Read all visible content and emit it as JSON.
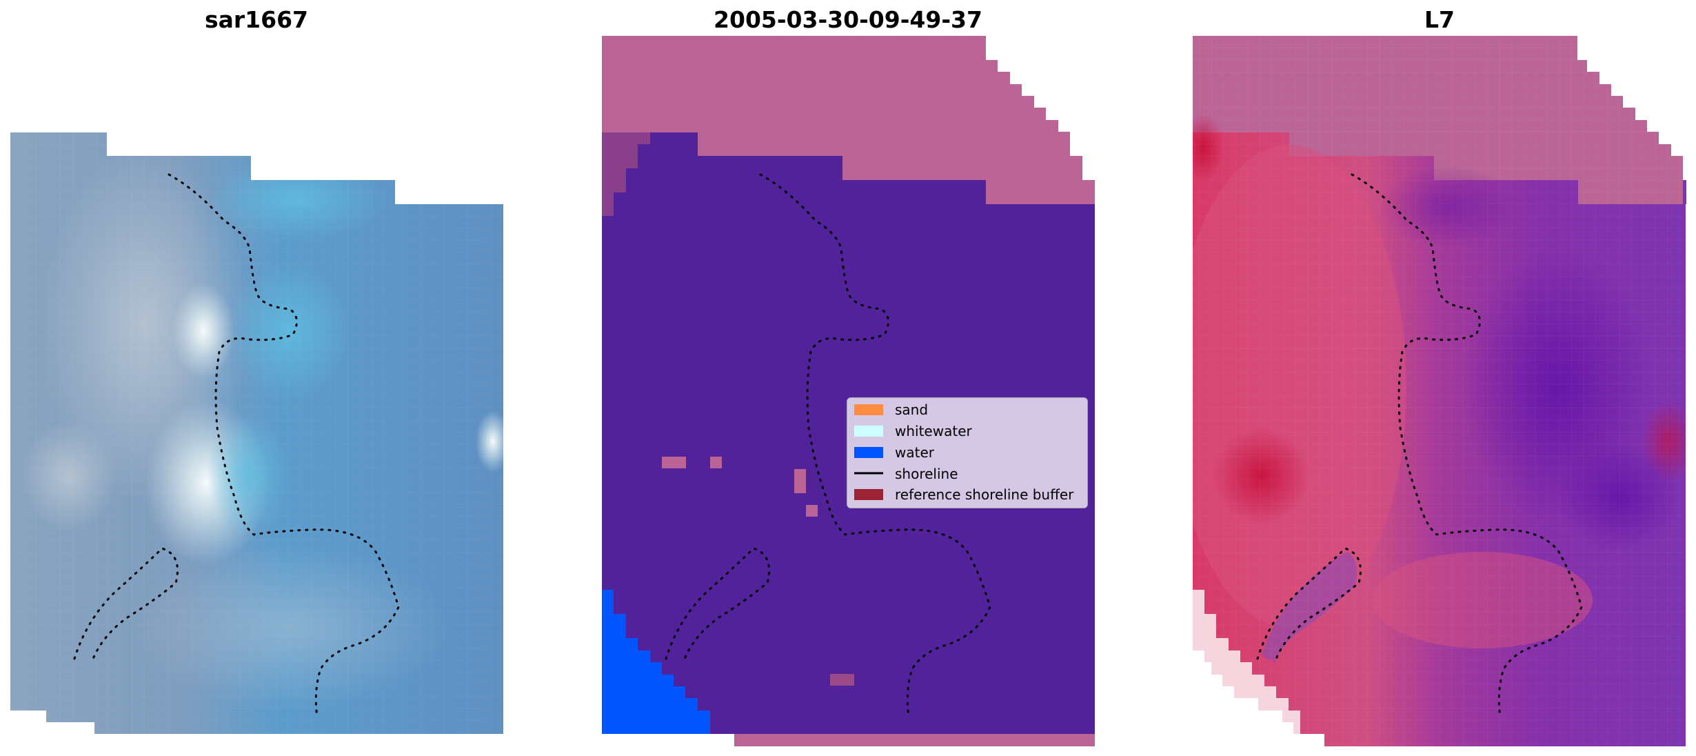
{
  "colors": {
    "background_panel": "#ffffff",
    "sand": "#ff8c42",
    "whitewater": "#ccffff",
    "water": "#0055ff",
    "shoreline": "#000000",
    "reference_shoreline_buffer": "#9b2335",
    "land_class_overlay": "#bb6496",
    "classified_water_overlay": "#52229a",
    "rgb_base": "#6a95c0",
    "index_high": "#c81c4a",
    "index_low": "#7a24a8"
  },
  "chart_data": [
    {
      "type": "heatmap",
      "title": "sar1667",
      "description_source": "rgb satellite image with reference shoreline overlay",
      "grid": false,
      "axes": "off"
    },
    {
      "type": "heatmap",
      "title": "2005-03-30-09-49-37",
      "grid": false,
      "axes": "off",
      "legend": {
        "placement": "right",
        "entries": [
          {
            "label": "sand",
            "color": "#ff8c42",
            "kind": "patch"
          },
          {
            "label": "whitewater",
            "color": "#ccffff",
            "kind": "patch"
          },
          {
            "label": "water",
            "color": "#0055ff",
            "kind": "patch"
          },
          {
            "label": "shoreline",
            "color": "#000000",
            "kind": "line"
          },
          {
            "label": "reference shoreline buffer",
            "color": "#9b2335",
            "kind": "patch"
          }
        ]
      }
    },
    {
      "type": "heatmap",
      "title": "L7",
      "grid": false,
      "axes": "off"
    }
  ]
}
